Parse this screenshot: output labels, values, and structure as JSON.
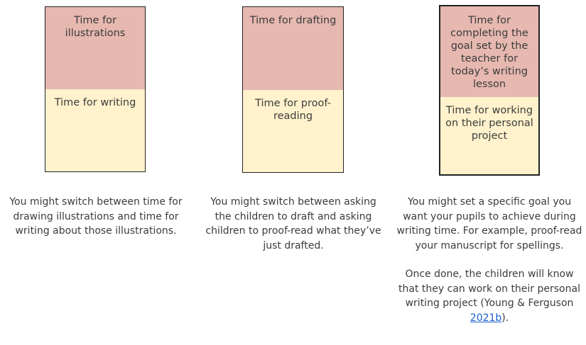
{
  "columns": [
    {
      "top": "Time for illustrations",
      "bottom": "Time for writing",
      "caption": [
        "You might switch between time for drawing illustrations and time for writing about those illustrations."
      ]
    },
    {
      "top": "Time for drafting",
      "bottom": "Time for proof-reading",
      "caption": [
        "You might switch between asking the children to draft and asking children to proof-read what they’ve just drafted."
      ]
    },
    {
      "top": "Time for completing the goal set by the teacher for today’s writing lesson",
      "bottom": "Time for working on their personal project",
      "caption": [
        "You might set a specific goal you want your pupils to achieve during writing time. For example, proof-read your manuscript for spellings."
      ],
      "note": {
        "before": "Once done, the children will know that they can work on their personal writing project (Young & Ferguson ",
        "link": "2021b",
        "after": ")."
      }
    }
  ]
}
